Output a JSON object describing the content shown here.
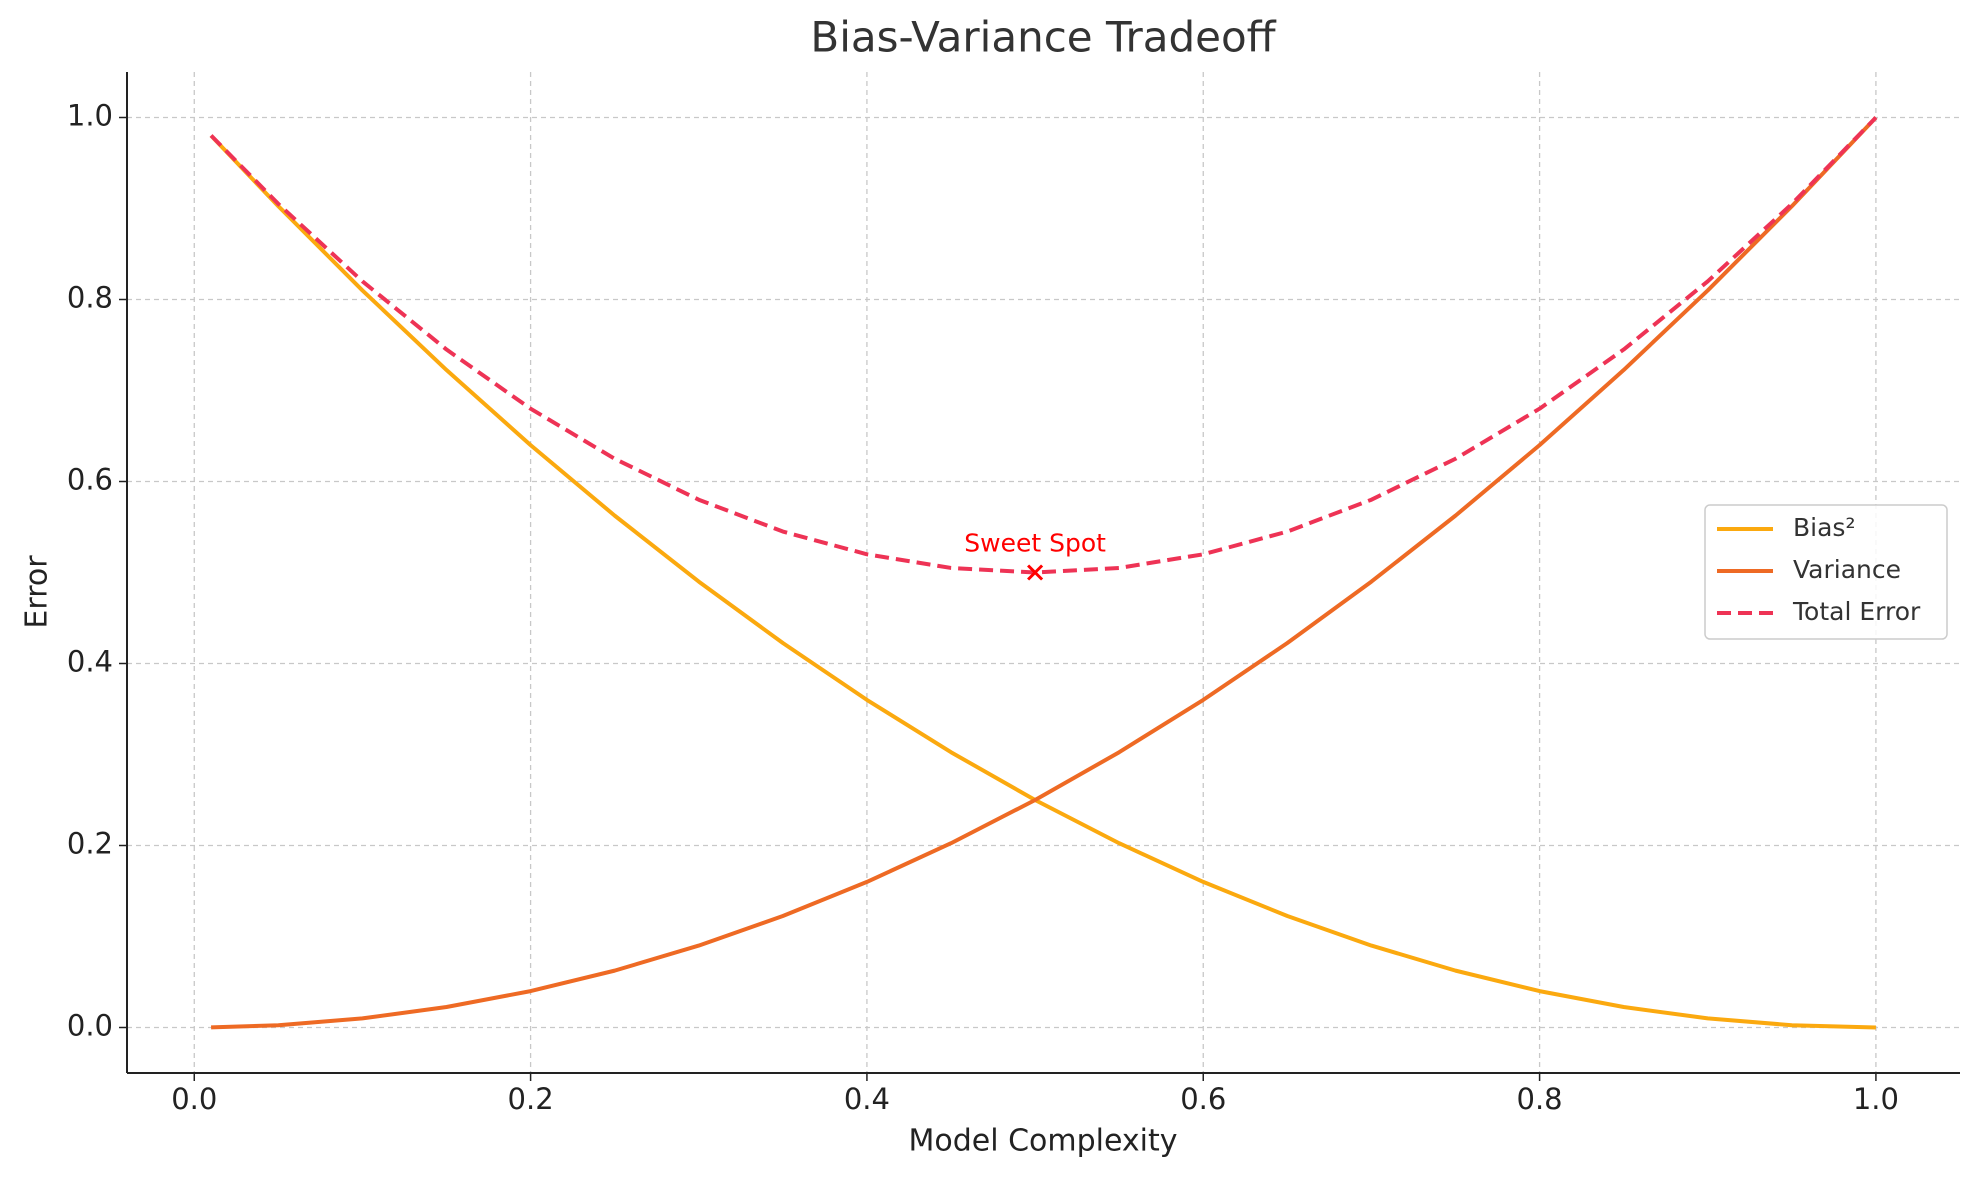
{
  "chart_data": {
    "type": "line",
    "title": "Bias-Variance Tradeoff",
    "x_label": "Model Complexity",
    "y_label": "Error",
    "x": [
      0.01,
      0.05,
      0.1,
      0.15,
      0.2,
      0.25,
      0.3,
      0.35,
      0.4,
      0.45,
      0.5,
      0.55,
      0.6,
      0.65,
      0.7,
      0.75,
      0.8,
      0.85,
      0.9,
      0.95,
      1.0
    ],
    "series": [
      {
        "name": "Bias²",
        "color": "#fba90f",
        "dashed": false,
        "values": [
          0.9801,
          0.9025,
          0.81,
          0.7225,
          0.64,
          0.5625,
          0.49,
          0.4225,
          0.36,
          0.3025,
          0.25,
          0.2025,
          0.16,
          0.1225,
          0.09,
          0.0625,
          0.04,
          0.0225,
          0.01,
          0.0025,
          0
        ]
      },
      {
        "name": "Variance",
        "color": "#ee6a24",
        "dashed": false,
        "values": [
          0.0001,
          0.0025,
          0.01,
          0.0225,
          0.04,
          0.0625,
          0.09,
          0.1225,
          0.16,
          0.2025,
          0.25,
          0.3025,
          0.36,
          0.4225,
          0.49,
          0.5625,
          0.64,
          0.7225,
          0.81,
          0.9025,
          1.0
        ]
      },
      {
        "name": "Total Error",
        "color": "#ee3355",
        "dashed": true,
        "values": [
          0.9802,
          0.905,
          0.82,
          0.745,
          0.68,
          0.625,
          0.58,
          0.545,
          0.52,
          0.505,
          0.5,
          0.505,
          0.52,
          0.545,
          0.58,
          0.625,
          0.68,
          0.745,
          0.82,
          0.905,
          1.0
        ]
      }
    ],
    "annotations": [
      {
        "text": "Sweet Spot",
        "x": 0.5,
        "y": 0.5,
        "color": "#ff0000"
      }
    ],
    "xlim": [
      -0.04,
      1.05
    ],
    "ylim": [
      -0.05,
      1.05
    ],
    "xticks": [
      {
        "value": 0,
        "label": "0.0"
      },
      0.2,
      0.4,
      0.6,
      0.8,
      {
        "value": 1,
        "label": "1.0"
      }
    ],
    "yticks": [
      {
        "value": 0,
        "label": "0.0"
      },
      0.2,
      0.4,
      0.6,
      0.8,
      {
        "value": 1,
        "label": "1.0"
      }
    ],
    "grid": true,
    "legend": "right"
  }
}
